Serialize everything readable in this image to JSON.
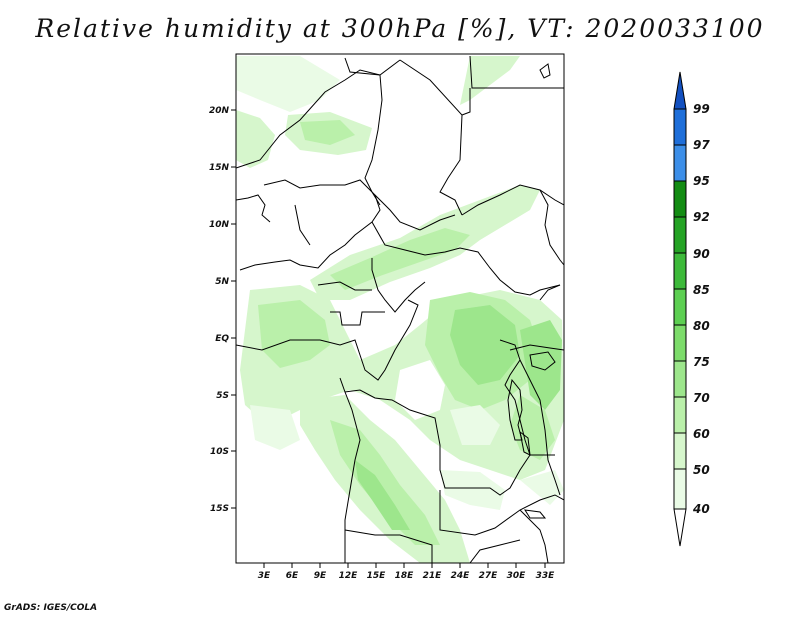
{
  "title": "Relative humidity at 300hPa [%], VT: 2020033100",
  "credit": "GrADS: IGES/COLA",
  "map": {
    "lat_labels": [
      "20N",
      "15N",
      "10N",
      "5N",
      "EQ",
      "5S",
      "10S",
      "15S"
    ],
    "lon_labels": [
      "3E",
      "6E",
      "9E",
      "12E",
      "15E",
      "18E",
      "21E",
      "24E",
      "27E",
      "30E",
      "33E"
    ]
  },
  "colorbar": {
    "levels": [
      "40",
      "50",
      "60",
      "70",
      "75",
      "80",
      "85",
      "90",
      "92",
      "95",
      "97",
      "99"
    ],
    "colors": [
      "#ffffff",
      "#eafbe6",
      "#d6f6cc",
      "#baf0aa",
      "#9de68c",
      "#7ddc6b",
      "#5dcf52",
      "#3dba3a",
      "#24a324",
      "#138c13",
      "#3d8fe8",
      "#1f6fd9",
      "#1250c0"
    ]
  }
}
